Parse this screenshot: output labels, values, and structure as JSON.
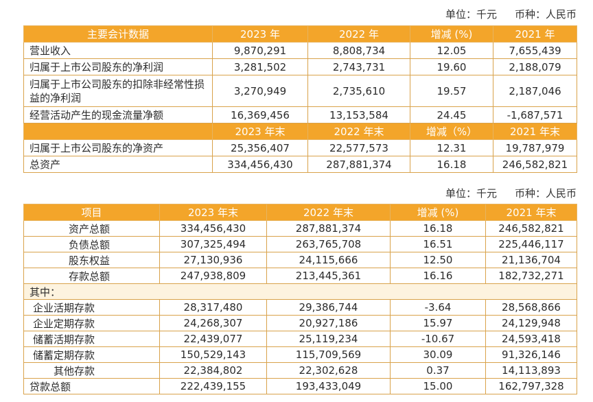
{
  "colors": {
    "header_orange": "#f3a52a",
    "border": "#d9a24a",
    "note_bg": "#fdf3df"
  },
  "unit1": {
    "unit": "单位：千元",
    "currency": "币种：人民币"
  },
  "table1": {
    "header": [
      "主要会计数据",
      "2023 年",
      "2022 年",
      "增减 (%)",
      "2021 年"
    ],
    "rows": [
      [
        "营业收入",
        "9,870,291",
        "8,808,734",
        "12.05",
        "7,655,439"
      ],
      [
        "归属于上市公司股东的净利润",
        "3,281,502",
        "2,743,731",
        "19.60",
        "2,188,079"
      ],
      [
        "归属于上市公司股东的扣除非经常性损益的净利润",
        "3,270,949",
        "2,735,610",
        "19.57",
        "2,187,046"
      ],
      [
        "经营活动产生的现金流量净额",
        "16,369,456",
        "13,153,584",
        "24.45",
        "-1,687,571"
      ]
    ],
    "subheader": [
      "",
      "2023 年末",
      "2022 年末",
      "增减（%）",
      "2021 年末"
    ],
    "rows2": [
      [
        "归属于上市公司股东的净资产",
        "25,356,407",
        "22,577,573",
        "12.31",
        "19,787,979"
      ],
      [
        "总资产",
        "334,456,430",
        "287,881,374",
        "16.18",
        "246,582,821"
      ]
    ]
  },
  "unit2": {
    "unit": "单位：千元",
    "currency": "币种：人民币"
  },
  "table2": {
    "header": [
      "项目",
      "2023 年末",
      "2022 年末",
      "增减 (%)",
      "2021 年末"
    ],
    "rows": [
      [
        "资产总额",
        "334,456,430",
        "287,881,374",
        "16.18",
        "246,582,821"
      ],
      [
        "负债总额",
        "307,325,494",
        "263,765,708",
        "16.51",
        "225,446,117"
      ],
      [
        "股东权益",
        "27,130,936",
        "24,115,666",
        "12.50",
        "21,136,704"
      ],
      [
        "存款总额",
        "247,938,809",
        "213,445,361",
        "16.16",
        "182,732,271"
      ]
    ],
    "note": "其中：",
    "rows2": [
      [
        "企业活期存款",
        "28,317,480",
        "29,386,744",
        "-3.64",
        "28,568,866"
      ],
      [
        "企业定期存款",
        "24,268,307",
        "20,927,186",
        "15.97",
        "24,129,948"
      ],
      [
        "储蓄活期存款",
        "22,439,077",
        "25,119,234",
        "-10.67",
        "24,593,418"
      ],
      [
        "储蓄定期存款",
        "150,529,143",
        "115,709,569",
        "30.09",
        "91,326,146"
      ],
      [
        "其他存款",
        "22,384,802",
        "22,302,628",
        "0.37",
        "14,113,893"
      ]
    ],
    "rows3": [
      [
        "贷款总额",
        "222,439,155",
        "193,433,049",
        "15.00",
        "162,797,328"
      ]
    ]
  }
}
